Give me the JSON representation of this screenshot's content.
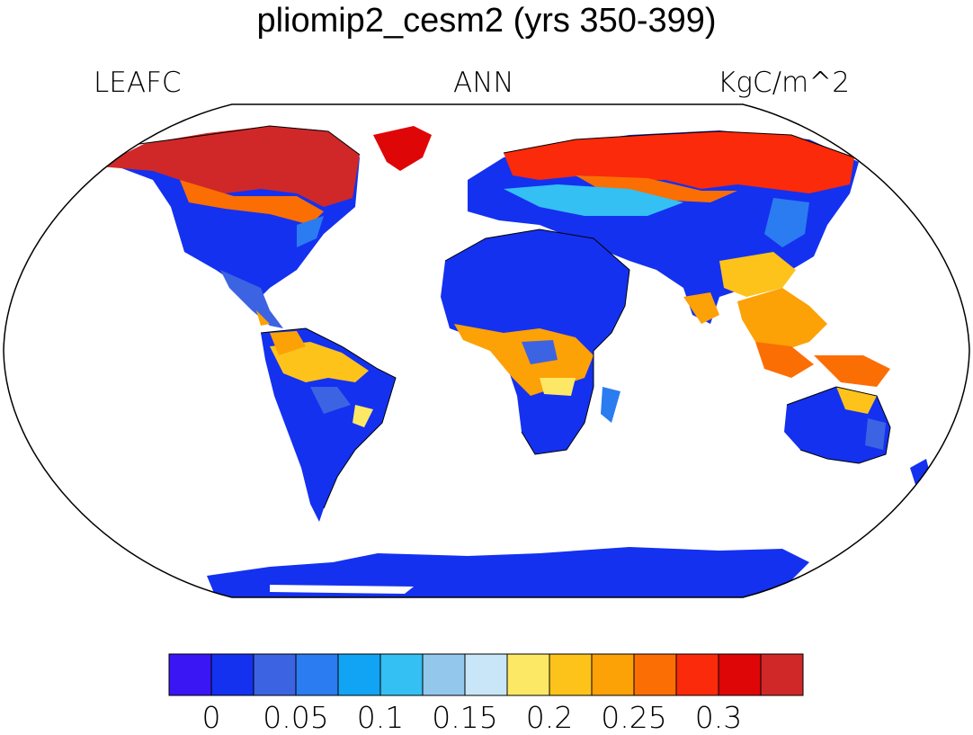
{
  "title": "pliomip2_cesm2 (yrs 350-399)",
  "left_label": "LEAFC",
  "center_label": "ANN",
  "right_label": "KgC/m^2",
  "colorbar": {
    "colors": [
      "#3b16f5",
      "#1431f0",
      "#3c63e2",
      "#2a7cf0",
      "#11a4f5",
      "#34c0f2",
      "#93c8ec",
      "#c9e6f8",
      "#fde866",
      "#fdc31a",
      "#fca106",
      "#fb6e04",
      "#fb2a0a",
      "#de0606",
      "#d02828"
    ],
    "tick_labels": [
      "0",
      "0.05",
      "0.1",
      "0.15",
      "0.2",
      "0.25",
      "0.3"
    ]
  }
}
